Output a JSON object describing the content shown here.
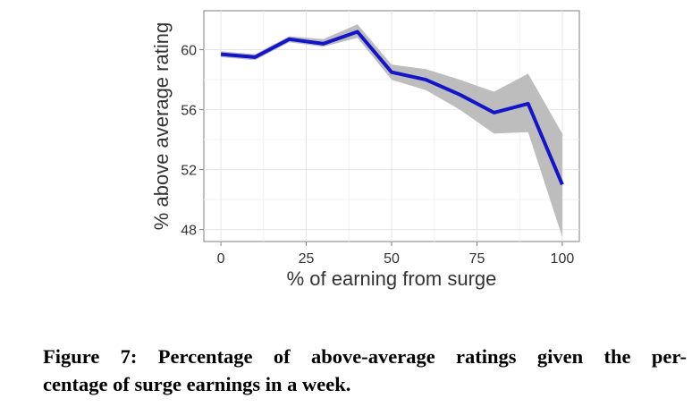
{
  "figure": {
    "caption_line1": "Figure 7: Percentage of above-average ratings given the per-",
    "caption_line2": "centage of surge earnings in a week."
  },
  "chart_data": {
    "type": "line",
    "xlabel": "% of earning from surge",
    "ylabel": "% above average rating",
    "xlim": [
      -5,
      105
    ],
    "ylim": [
      47.2,
      62.6
    ],
    "x_ticks": [
      0,
      25,
      50,
      75,
      100
    ],
    "y_ticks": [
      48,
      52,
      56,
      60
    ],
    "grid": true,
    "series": [
      {
        "x": [
          0,
          10,
          20,
          30,
          40,
          50,
          60,
          70,
          80,
          90,
          100
        ],
        "y": [
          59.7,
          59.5,
          60.7,
          60.4,
          61.2,
          58.5,
          58.0,
          57.0,
          55.8,
          56.4,
          51.0
        ],
        "ci_lower": [
          59.5,
          59.3,
          60.5,
          60.2,
          60.8,
          58.0,
          57.3,
          56.0,
          54.4,
          54.5,
          47.5
        ],
        "ci_upper": [
          59.9,
          59.7,
          60.9,
          60.7,
          61.7,
          59.0,
          58.7,
          58.0,
          57.2,
          58.4,
          54.4
        ],
        "color": "#1414c8",
        "band_color": "#bdbdbd"
      }
    ]
  }
}
